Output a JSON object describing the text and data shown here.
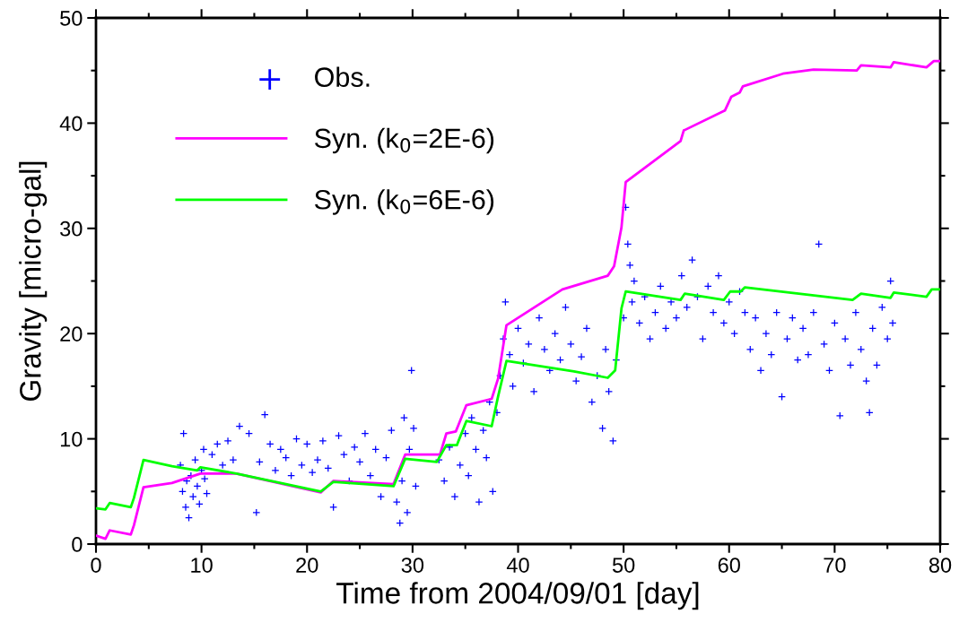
{
  "chart_data": {
    "type": "scatter",
    "xlabel": "Time from 2004/09/01 [day]",
    "ylabel": "Gravity [micro-gal]",
    "xlim": [
      0,
      80
    ],
    "ylim": [
      0,
      50
    ],
    "xticks": [
      0,
      10,
      20,
      30,
      40,
      50,
      60,
      70,
      80
    ],
    "yticks": [
      0,
      10,
      20,
      30,
      40,
      50
    ],
    "grid": false,
    "legend": "top left",
    "series": [
      {
        "name": "Obs.",
        "marker": "cross",
        "color": "#0000ff",
        "x": [
          8.0,
          8.2,
          8.3,
          8.5,
          8.6,
          8.8,
          9.0,
          9.2,
          9.4,
          9.6,
          9.8,
          10.0,
          10.2,
          10.3,
          10.5,
          11.0,
          11.5,
          12.0,
          12.5,
          13.0,
          13.6,
          14.5,
          15.2,
          15.5,
          16.0,
          16.5,
          17.0,
          17.5,
          18.0,
          18.5,
          19.0,
          19.5,
          20.0,
          20.5,
          21.0,
          21.5,
          22.0,
          22.5,
          23.0,
          23.5,
          24.0,
          24.5,
          25.0,
          25.5,
          26.0,
          26.5,
          27.0,
          27.5,
          28.0,
          28.5,
          28.8,
          29.0,
          29.2,
          29.5,
          29.7,
          29.9,
          30.1,
          30.3,
          32.5,
          33.0,
          33.5,
          34.0,
          34.5,
          35.0,
          35.3,
          35.6,
          36.0,
          36.3,
          36.7,
          37.0,
          37.3,
          37.6,
          38.0,
          38.3,
          38.6,
          38.8,
          39.2,
          39.5,
          40.0,
          40.5,
          41.0,
          41.5,
          42.0,
          42.5,
          43.0,
          43.5,
          44.0,
          44.5,
          45.0,
          45.5,
          46.0,
          46.5,
          47.0,
          47.5,
          48.0,
          48.3,
          48.6,
          49.0,
          49.3,
          50.0,
          50.2,
          50.4,
          50.6,
          50.8,
          51.0,
          51.5,
          52.0,
          52.5,
          53.0,
          53.5,
          54.0,
          54.5,
          55.0,
          55.5,
          56.0,
          56.5,
          57.0,
          57.5,
          58.0,
          58.5,
          59.0,
          59.5,
          60.0,
          60.5,
          61.0,
          61.5,
          62.0,
          62.5,
          63.0,
          63.5,
          64.0,
          64.5,
          65.0,
          65.5,
          66.0,
          66.5,
          67.0,
          67.5,
          68.0,
          68.5,
          69.0,
          69.5,
          70.0,
          70.5,
          71.0,
          71.5,
          72.0,
          72.5,
          73.0,
          73.3,
          73.6,
          74.0,
          74.5,
          75.0,
          75.3,
          75.5
        ],
        "values": [
          7.5,
          5.0,
          10.5,
          3.5,
          6.0,
          2.5,
          6.5,
          4.5,
          8.0,
          5.5,
          3.8,
          7.0,
          9.0,
          6.2,
          4.8,
          8.5,
          9.5,
          7.5,
          9.8,
          8.0,
          11.2,
          10.5,
          3.0,
          7.8,
          12.3,
          9.5,
          7.0,
          9.0,
          8.2,
          6.5,
          10.0,
          7.5,
          9.5,
          6.8,
          8.0,
          9.8,
          7.2,
          3.5,
          10.3,
          8.5,
          6.0,
          9.2,
          7.8,
          10.5,
          6.5,
          9.0,
          4.5,
          8.2,
          10.8,
          4.0,
          2.0,
          6.0,
          12.0,
          3.0,
          9.0,
          16.5,
          11.0,
          5.5,
          8.0,
          6.0,
          9.2,
          4.5,
          7.5,
          10.5,
          6.5,
          12.0,
          9.0,
          4.0,
          10.8,
          8.2,
          13.5,
          5.0,
          12.5,
          16.0,
          19.5,
          23.0,
          18.0,
          15.0,
          20.5,
          17.2,
          19.0,
          14.5,
          21.5,
          18.5,
          16.5,
          20.0,
          17.5,
          22.5,
          19.0,
          15.5,
          17.8,
          20.5,
          13.5,
          16.0,
          11.0,
          18.5,
          14.5,
          9.8,
          17.5,
          21.5,
          32.0,
          28.5,
          26.5,
          23.0,
          25.0,
          21.0,
          23.5,
          19.5,
          22.0,
          24.5,
          20.5,
          23.0,
          21.5,
          25.5,
          22.5,
          27.0,
          23.5,
          19.5,
          24.5,
          22.0,
          25.5,
          21.0,
          23.0,
          20.0,
          24.0,
          22.0,
          18.5,
          21.5,
          16.5,
          20.0,
          18.0,
          22.0,
          14.0,
          19.5,
          21.5,
          17.5,
          20.5,
          18.0,
          22.0,
          28.5,
          19.0,
          16.5,
          21.0,
          12.2,
          19.5,
          17.0,
          22.0,
          18.5,
          15.5,
          12.5,
          20.5,
          17.0,
          22.5,
          19.5,
          25.0,
          21.0
        ]
      },
      {
        "name": "Syn. (k$_{0}$=2E-6)",
        "type": "line",
        "color": "#ff00ff",
        "x": [
          0,
          0.9,
          1.3,
          3.3,
          3.6,
          4.5,
          7.2,
          9.9,
          13.3,
          21.3,
          22.5,
          28.2,
          29.3,
          32.6,
          33.2,
          34.1,
          35.1,
          37.5,
          38.1,
          38.9,
          44.2,
          48.5,
          49.1,
          49.8,
          50.2,
          55.4,
          55.7,
          59.6,
          60.2,
          61.0,
          61.3,
          65.1,
          68.0,
          72.1,
          72.5,
          75.3,
          75.6,
          78.7,
          79.4,
          80
        ],
        "values": [
          0.8,
          0.5,
          1.3,
          0.9,
          1.8,
          5.4,
          5.8,
          6.7,
          6.7,
          4.9,
          6.0,
          5.7,
          8.5,
          8.5,
          10.5,
          10.7,
          13.2,
          13.8,
          15.7,
          20.8,
          24.2,
          25.5,
          26.4,
          30.1,
          34.4,
          38.3,
          39.3,
          41.2,
          42.5,
          42.9,
          43.5,
          44.7,
          45.1,
          45.0,
          45.5,
          45.3,
          45.8,
          45.3,
          45.9,
          45.9
        ]
      },
      {
        "name": "Syn. (k$_{0}$=6E-6)",
        "type": "line",
        "color": "#00ff00",
        "x": [
          0,
          0.9,
          1.3,
          3.3,
          3.6,
          4.5,
          7.2,
          9.6,
          9.9,
          13.3,
          21.3,
          22.5,
          28.2,
          29.3,
          32.3,
          33.2,
          34.2,
          35.1,
          37.5,
          38.1,
          38.9,
          45.3,
          48.5,
          49.2,
          49.8,
          50.2,
          55.4,
          55.8,
          59.5,
          60.1,
          61.1,
          61.5,
          71.7,
          72.5,
          75.3,
          75.6,
          78.7,
          79.2,
          80
        ],
        "values": [
          3.4,
          3.3,
          3.9,
          3.5,
          4.4,
          8.0,
          7.4,
          7.0,
          7.3,
          6.7,
          5.0,
          5.9,
          5.5,
          8.1,
          7.8,
          9.4,
          9.4,
          11.7,
          11.2,
          14.0,
          17.4,
          16.4,
          15.8,
          16.5,
          22.4,
          24.0,
          23.2,
          23.8,
          23.2,
          24.0,
          24.0,
          24.4,
          23.2,
          23.8,
          23.4,
          23.9,
          23.5,
          24.2,
          24.2
        ]
      }
    ]
  }
}
